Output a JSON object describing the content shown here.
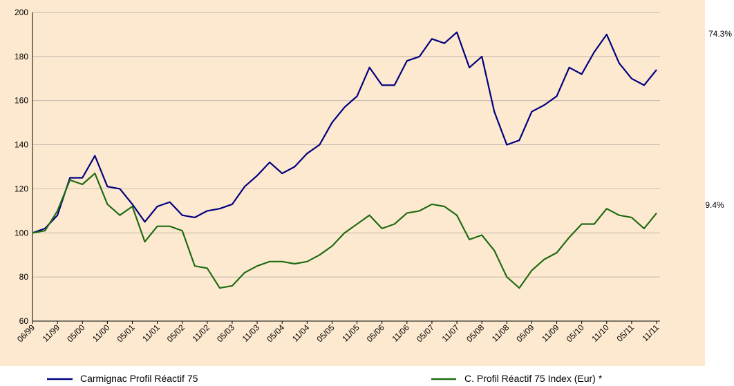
{
  "chart_data": {
    "type": "line",
    "categories": [
      "06/99",
      null,
      "11/99",
      null,
      "05/00",
      null,
      "11/00",
      null,
      "05/01",
      null,
      "11/01",
      null,
      "05/02",
      null,
      "11/02",
      null,
      "05/03",
      null,
      "11/03",
      null,
      "05/04",
      null,
      "11/04",
      null,
      "05/05",
      null,
      "11/05",
      null,
      "05/06",
      null,
      "11/06",
      null,
      "05/07",
      null,
      "11/07",
      null,
      "05/08",
      null,
      "11/08",
      null,
      "05/09",
      null,
      "11/09",
      null,
      "05/10",
      null,
      "11/10",
      null,
      "05/11",
      null,
      "11/11"
    ],
    "series": [
      {
        "name": "Carmignac Profil Réactif 75",
        "color": "#000080",
        "values": [
          100,
          102,
          108,
          125,
          125,
          135,
          121,
          120,
          113,
          105,
          112,
          114,
          108,
          107,
          110,
          111,
          113,
          121,
          126,
          132,
          127,
          130,
          136,
          140,
          150,
          157,
          162,
          175,
          167,
          167,
          178,
          180,
          188,
          186,
          191,
          175,
          180,
          155,
          140,
          142,
          155,
          158,
          162,
          175,
          172,
          182,
          190,
          177,
          170,
          167,
          174
        ]
      },
      {
        "name": "C. Profil Réactif 75 Index (Eur) *",
        "color": "#1f6b12",
        "values": [
          100,
          101,
          110,
          124,
          122,
          127,
          113,
          108,
          112,
          96,
          103,
          103,
          101,
          85,
          84,
          75,
          76,
          82,
          85,
          87,
          87,
          86,
          87,
          90,
          94,
          100,
          104,
          108,
          102,
          104,
          109,
          110,
          113,
          112,
          108,
          97,
          99,
          92,
          80,
          75,
          83,
          88,
          91,
          98,
          104,
          104,
          111,
          108,
          107,
          102,
          109
        ]
      }
    ],
    "annotations": [
      "74.3%",
      "9.4%"
    ],
    "ylim": [
      60,
      200
    ],
    "yticks": [
      60,
      80,
      100,
      120,
      140,
      160,
      180,
      200
    ],
    "grid": true
  }
}
